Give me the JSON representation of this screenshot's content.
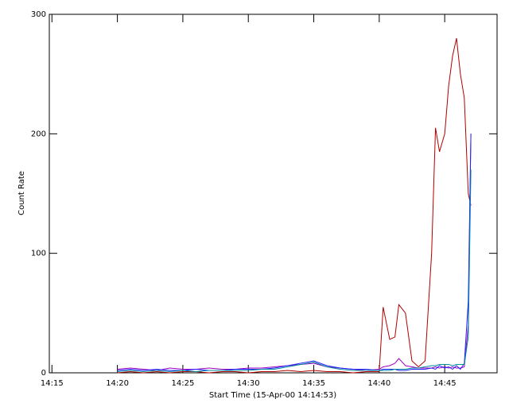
{
  "chart_data": {
    "type": "line",
    "x_label": "Start Time (15-Apr-00 14:14:53)",
    "y_label": "Count Rate",
    "x": [
      20,
      21,
      22,
      23,
      24,
      25,
      26,
      27,
      28,
      29,
      30,
      31,
      32,
      33,
      34,
      35,
      36,
      37,
      38,
      39,
      40,
      40.3,
      40.8,
      41.2,
      41.5,
      42,
      42.5,
      43,
      43.5,
      44,
      44.3,
      44.6,
      45,
      45.3,
      45.6,
      45.9,
      46.2,
      46.5,
      46.8,
      47
    ],
    "series": [
      {
        "color": "#b00000",
        "values": [
          0,
          1,
          0,
          1,
          0,
          1,
          1,
          0,
          1,
          1,
          0,
          1,
          1,
          2,
          1,
          2,
          1,
          1,
          0,
          1,
          1,
          55,
          28,
          30,
          57,
          50,
          10,
          5,
          10,
          100,
          205,
          185,
          200,
          240,
          265,
          280,
          250,
          230,
          150,
          140
        ]
      },
      {
        "color": "#a000c0",
        "values": [
          3,
          4,
          3,
          2,
          4,
          3,
          3,
          4,
          3,
          3,
          4,
          4,
          5,
          6,
          7,
          8,
          5,
          4,
          3,
          2,
          3,
          5,
          6,
          8,
          12,
          6,
          5,
          4,
          4,
          4,
          5,
          4,
          5,
          4,
          5,
          4,
          4,
          5,
          40,
          200
        ]
      },
      {
        "color": "#2020ff",
        "values": [
          2,
          3,
          2,
          3,
          2,
          2,
          3,
          2,
          2,
          3,
          3,
          3,
          4,
          6,
          8,
          10,
          6,
          4,
          3,
          3,
          2,
          3,
          3,
          3,
          2,
          2,
          3,
          3,
          3,
          4,
          3,
          6,
          4,
          5,
          3,
          6,
          3,
          8,
          60,
          200
        ]
      },
      {
        "color": "#008b9b",
        "values": [
          1,
          2,
          1,
          2,
          1,
          2,
          1,
          2,
          2,
          2,
          2,
          3,
          3,
          5,
          7,
          9,
          5,
          3,
          2,
          2,
          2,
          2,
          2,
          3,
          3,
          3,
          4,
          4,
          5,
          6,
          6,
          7,
          7,
          7,
          6,
          7,
          7,
          7,
          30,
          170
        ]
      }
    ],
    "xlim": [
      14.8,
      49
    ],
    "xticks": [
      {
        "value": 15,
        "label": "14:15"
      },
      {
        "value": 20,
        "label": "14:20"
      },
      {
        "value": 25,
        "label": "14:25"
      },
      {
        "value": 30,
        "label": "14:30"
      },
      {
        "value": 35,
        "label": "14:35"
      },
      {
        "value": 40,
        "label": "14:40"
      },
      {
        "value": 45,
        "label": "14:45"
      }
    ],
    "ylim": [
      0,
      300
    ],
    "yticks": [
      0,
      100,
      200,
      300
    ]
  }
}
